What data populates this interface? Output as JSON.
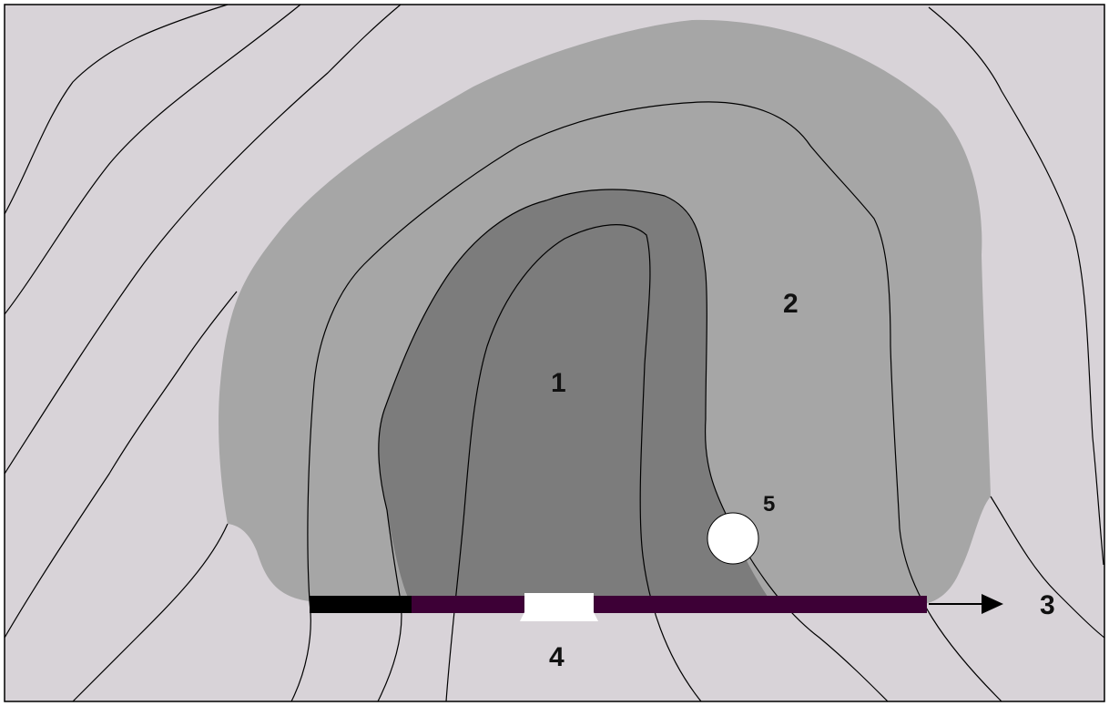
{
  "diagram": {
    "labels": {
      "zone_1": "1",
      "zone_2": "2",
      "arrow_3": "3",
      "gap_4": "4",
      "point_5": "5"
    },
    "colors": {
      "background": "#d8d3d8",
      "outer_zone": "#a6a6a6",
      "inner_zone": "#7c7c7c",
      "bar_dark": "#000000",
      "bar_purple": "#3d0036",
      "marker": "#ffffff",
      "line": "#000000"
    }
  }
}
